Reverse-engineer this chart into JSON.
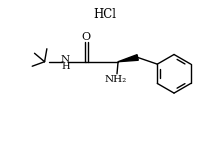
{
  "hcl_label": "HCl",
  "nh2_label": "NH₂",
  "o_label": "O",
  "background": "#ffffff",
  "line_color": "#000000",
  "fig_width": 2.23,
  "fig_height": 1.41,
  "dpi": 100,
  "lw": 1.0
}
